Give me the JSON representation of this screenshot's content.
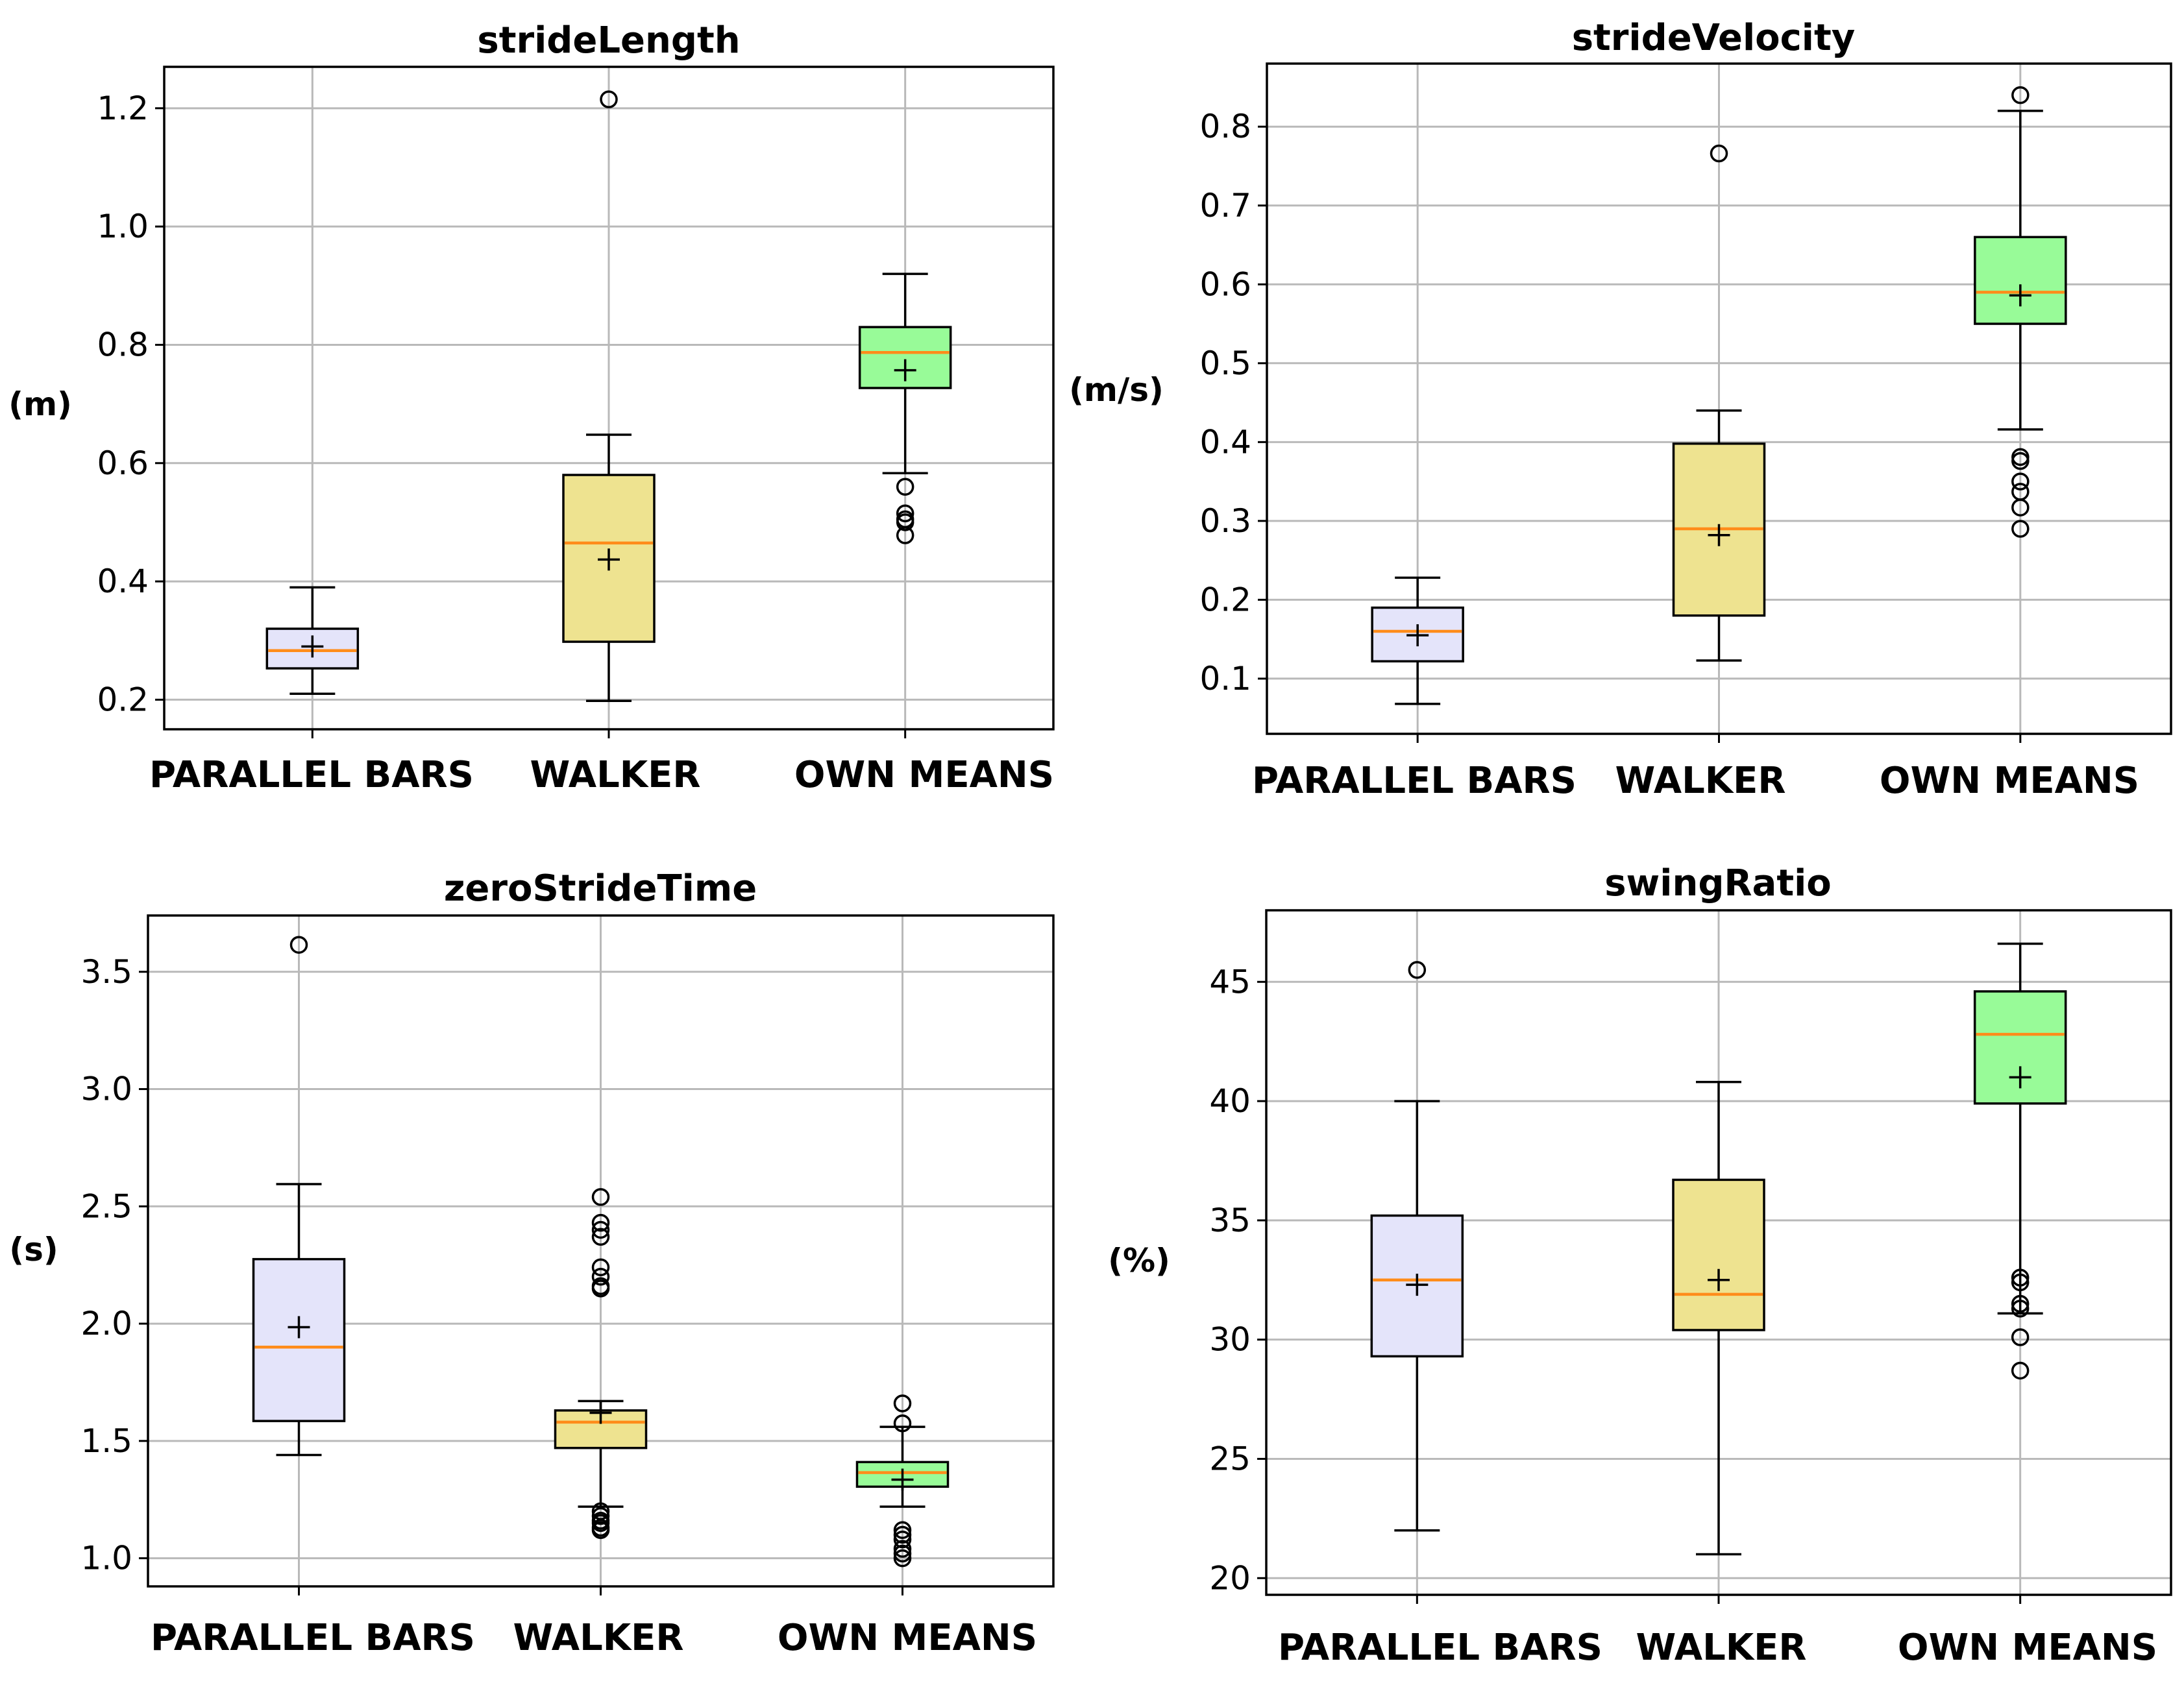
{
  "colors": {
    "parallel_bars": "#e4e4fa",
    "walker": "#eee390",
    "own_means": "#98fb98",
    "median": "#ff8c1a",
    "grid": "#b9b9b9"
  },
  "chart_data": [
    {
      "type": "box",
      "title": "strideLength",
      "ylabel": "(m)",
      "ylim": [
        0.15,
        1.27
      ],
      "yticks": [
        0.2,
        0.4,
        0.6,
        0.8,
        1.0,
        1.2
      ],
      "ytick_labels": [
        "0.2",
        "0.4",
        "0.6",
        "0.8",
        "1.0",
        "1.2"
      ],
      "grid": true,
      "categories": [
        "PARALLEL BARS",
        "WALKER",
        "OWN MEANS"
      ],
      "boxes": [
        {
          "category": "PARALLEL BARS",
          "whislo": 0.21,
          "q1": 0.253,
          "median": 0.283,
          "q3": 0.32,
          "whishi": 0.39,
          "mean": 0.29,
          "fliers": []
        },
        {
          "category": "WALKER",
          "whislo": 0.198,
          "q1": 0.298,
          "median": 0.465,
          "q3": 0.58,
          "whishi": 0.648,
          "mean": 0.437,
          "fliers": [
            1.215
          ]
        },
        {
          "category": "OWN MEANS",
          "whislo": 0.583,
          "q1": 0.727,
          "median": 0.787,
          "q3": 0.83,
          "whishi": 0.92,
          "mean": 0.757,
          "fliers": [
            0.56,
            0.515,
            0.505,
            0.5,
            0.478
          ]
        }
      ]
    },
    {
      "type": "box",
      "title": "strideVelocity",
      "ylabel": "(m/s)",
      "ylim": [
        0.03,
        0.88
      ],
      "yticks": [
        0.1,
        0.2,
        0.3,
        0.4,
        0.5,
        0.6,
        0.7,
        0.8
      ],
      "ytick_labels": [
        "0.1",
        "0.2",
        "0.3",
        "0.4",
        "0.5",
        "0.6",
        "0.7",
        "0.8"
      ],
      "grid": true,
      "categories": [
        "PARALLEL BARS",
        "WALKER",
        "OWN MEANS"
      ],
      "boxes": [
        {
          "category": "PARALLEL BARS",
          "whislo": 0.068,
          "q1": 0.122,
          "median": 0.16,
          "q3": 0.19,
          "whishi": 0.228,
          "mean": 0.155,
          "fliers": []
        },
        {
          "category": "WALKER",
          "whislo": 0.123,
          "q1": 0.18,
          "median": 0.29,
          "q3": 0.398,
          "whishi": 0.44,
          "mean": 0.282,
          "fliers": [
            0.766
          ]
        },
        {
          "category": "OWN MEANS",
          "whislo": 0.416,
          "q1": 0.55,
          "median": 0.59,
          "q3": 0.66,
          "whishi": 0.82,
          "mean": 0.586,
          "fliers": [
            0.84,
            0.381,
            0.376,
            0.35,
            0.337,
            0.317,
            0.29
          ]
        }
      ]
    },
    {
      "type": "box",
      "title": "zeroStrideTime",
      "ylabel": "(s)",
      "ylim": [
        0.88,
        3.74
      ],
      "yticks": [
        1.0,
        1.5,
        2.0,
        2.5,
        3.0,
        3.5
      ],
      "ytick_labels": [
        "1.0",
        "1.5",
        "2.0",
        "2.5",
        "3.0",
        "3.5"
      ],
      "grid": true,
      "categories": [
        "PARALLEL BARS",
        "WALKER",
        "OWN MEANS"
      ],
      "boxes": [
        {
          "category": "PARALLEL BARS",
          "whislo": 1.44,
          "q1": 1.585,
          "median": 1.9,
          "q3": 2.275,
          "whishi": 2.595,
          "mean": 1.985,
          "fliers": [
            3.615
          ]
        },
        {
          "category": "WALKER",
          "whislo": 1.22,
          "q1": 1.47,
          "median": 1.58,
          "q3": 1.63,
          "whishi": 1.67,
          "mean": 1.62,
          "fliers": [
            2.54,
            2.43,
            2.4,
            2.37,
            2.24,
            2.2,
            2.16,
            2.15,
            1.2,
            1.18,
            1.16,
            1.15,
            1.13,
            1.12
          ]
        },
        {
          "category": "OWN MEANS",
          "whislo": 1.22,
          "q1": 1.305,
          "median": 1.365,
          "q3": 1.41,
          "whishi": 1.56,
          "mean": 1.335,
          "fliers": [
            1.66,
            1.575,
            1.12,
            1.1,
            1.08,
            1.04,
            1.02,
            1.0
          ]
        }
      ]
    },
    {
      "type": "box",
      "title": "swingRatio",
      "ylabel": "(%)",
      "ylim": [
        19.3,
        48.0
      ],
      "yticks": [
        20,
        25,
        30,
        35,
        40,
        45
      ],
      "ytick_labels": [
        "20",
        "25",
        "30",
        "35",
        "40",
        "45"
      ],
      "grid": true,
      "categories": [
        "PARALLEL BARS",
        "WALKER",
        "OWN MEANS"
      ],
      "boxes": [
        {
          "category": "PARALLEL BARS",
          "whislo": 22.0,
          "q1": 29.3,
          "median": 32.5,
          "q3": 35.2,
          "whishi": 40.0,
          "mean": 32.3,
          "fliers": [
            45.5
          ]
        },
        {
          "category": "WALKER",
          "whislo": 21.0,
          "q1": 30.4,
          "median": 31.9,
          "q3": 36.7,
          "whishi": 40.8,
          "mean": 32.5,
          "fliers": []
        },
        {
          "category": "OWN MEANS",
          "whislo": 31.1,
          "q1": 39.9,
          "median": 42.8,
          "q3": 44.6,
          "whishi": 46.6,
          "mean": 41.0,
          "fliers": [
            32.6,
            32.4,
            31.5,
            31.3,
            30.1,
            28.7
          ]
        }
      ]
    }
  ]
}
